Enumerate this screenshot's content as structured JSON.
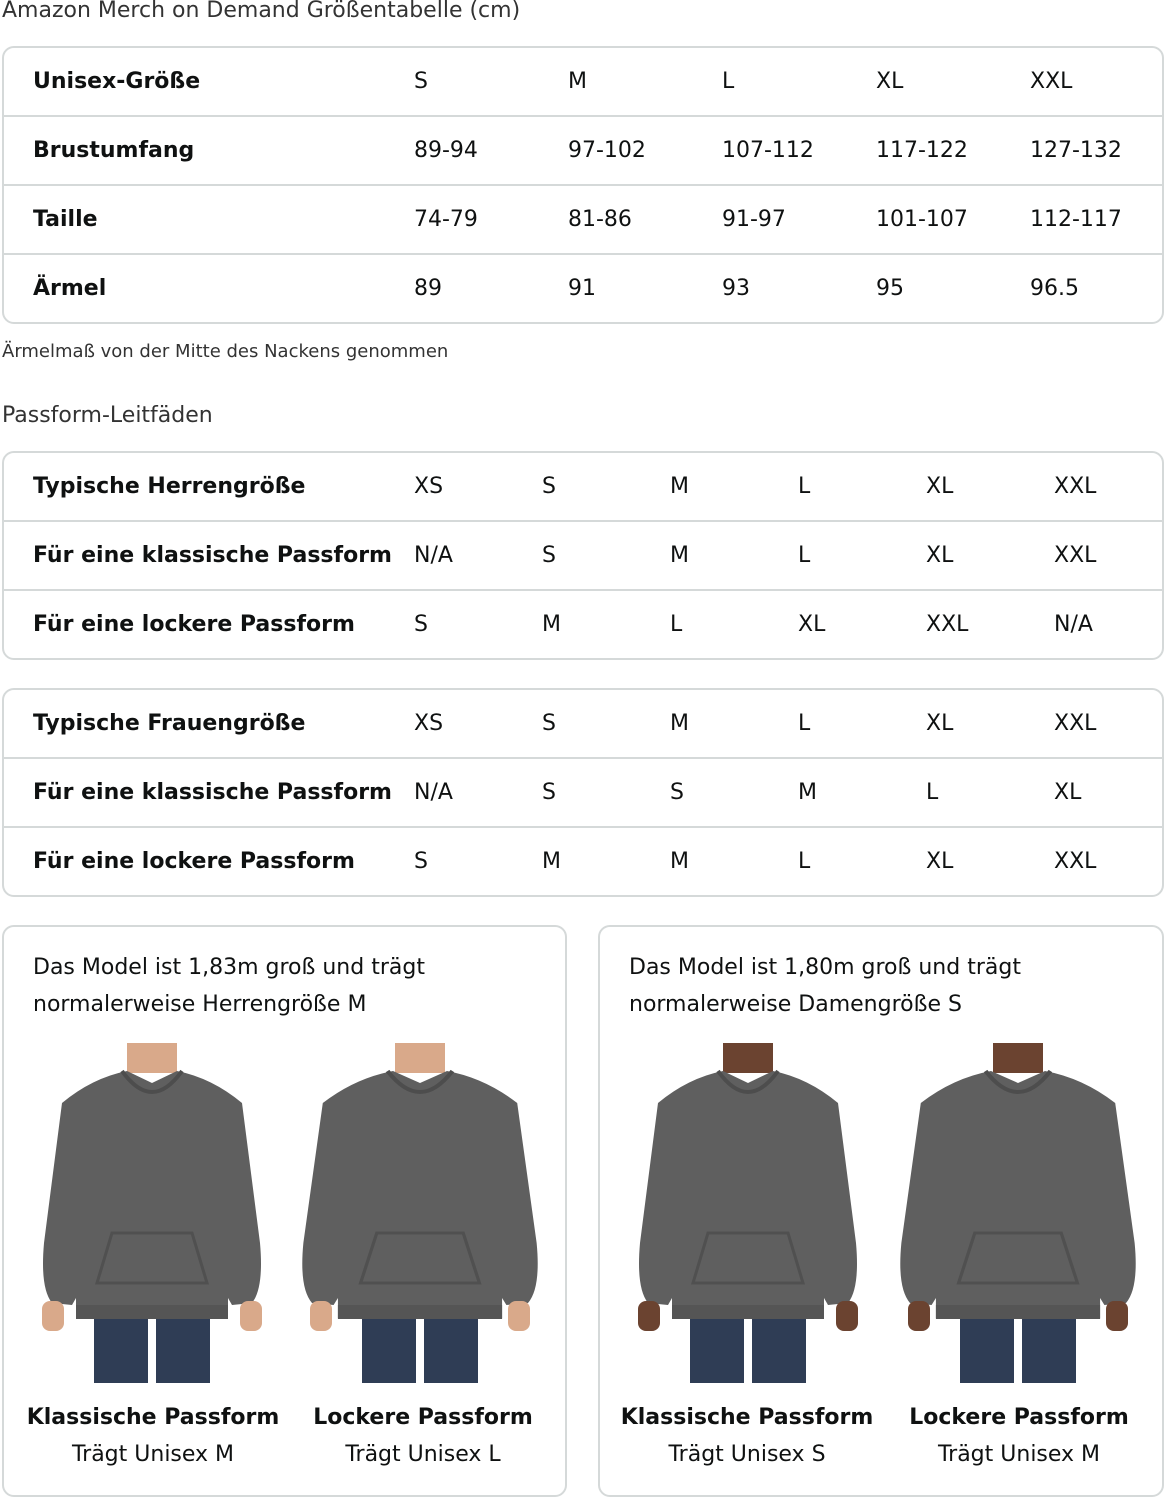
{
  "title": "Amazon Merch on Demand Größentabelle (cm)",
  "unisex_table": {
    "rows": [
      {
        "label": "Unisex-Größe",
        "values": [
          "S",
          "M",
          "L",
          "XL",
          "XXL"
        ]
      },
      {
        "label": "Brustumfang",
        "values": [
          "89-94",
          "97-102",
          "107-112",
          "117-122",
          "127-132"
        ]
      },
      {
        "label": "Taille",
        "values": [
          "74-79",
          "81-86",
          "91-97",
          "101-107",
          "112-117"
        ]
      },
      {
        "label": "Ärmel",
        "values": [
          "89",
          "91",
          "93",
          "95",
          "96.5"
        ]
      }
    ]
  },
  "sleeve_note": "Ärmelmaß von der Mitte des Nackens genommen",
  "fit_guide_title": "Passform-Leitfäden",
  "men_table": {
    "rows": [
      {
        "label": "Typische Herrengröße",
        "values": [
          "XS",
          "S",
          "M",
          "L",
          "XL",
          "XXL"
        ]
      },
      {
        "label": "Für eine klassische Passform",
        "values": [
          "N/A",
          "S",
          "M",
          "L",
          "XL",
          "XXL"
        ]
      },
      {
        "label": "Für eine lockere Passform",
        "values": [
          "S",
          "M",
          "L",
          "XL",
          "XXL",
          "N/A"
        ]
      }
    ]
  },
  "women_table": {
    "rows": [
      {
        "label": "Typische Frauengröße",
        "values": [
          "XS",
          "S",
          "M",
          "L",
          "XL",
          "XXL"
        ]
      },
      {
        "label": "Für eine klassische Passform",
        "values": [
          "N/A",
          "S",
          "S",
          "M",
          "L",
          "XL"
        ]
      },
      {
        "label": "Für eine lockere Passform",
        "values": [
          "S",
          "M",
          "M",
          "L",
          "XL",
          "XXL"
        ]
      }
    ]
  },
  "model_cards": [
    {
      "caption": "Das Model ist 1,83m groß und trägt normalerweise Herrengröße M",
      "figures": [
        {
          "label": "Klassische Passform",
          "sub": "Trägt Unisex M",
          "skin": "#d9a98a",
          "fit": "classic"
        },
        {
          "label": "Lockere Passform",
          "sub": "Trägt Unisex L",
          "skin": "#d9a98a",
          "fit": "relaxed"
        }
      ]
    },
    {
      "caption": "Das Model ist 1,80m groß und trägt normalerweise Damengröße S",
      "figures": [
        {
          "label": "Klassische Passform",
          "sub": "Trägt Unisex S",
          "skin": "#6b4330",
          "fit": "classic"
        },
        {
          "label": "Lockere Passform",
          "sub": "Trägt Unisex M",
          "skin": "#6b4330",
          "fit": "relaxed"
        }
      ]
    }
  ],
  "colors": {
    "hoodie": "#5f5f5f",
    "jeans": "#2f3d55",
    "border": "#d5d9d9"
  }
}
